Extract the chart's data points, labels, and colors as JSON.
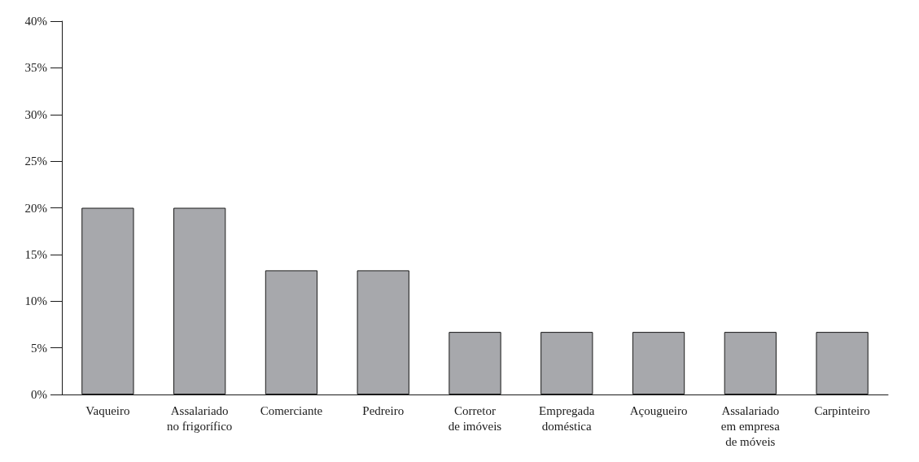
{
  "chart_data": {
    "type": "bar",
    "categories": [
      "Vaqueiro",
      "Assalariado\nno frigorífico",
      "Comerciante",
      "Pedreiro",
      "Corretor\nde imóveis",
      "Empregada\ndoméstica",
      "Açougueiro",
      "Assalariado\nem empresa\nde móveis",
      "Carpinteiro"
    ],
    "values": [
      20,
      20,
      13.3,
      13.3,
      6.7,
      6.7,
      6.7,
      6.7,
      6.7
    ],
    "color": "#a7a8ac",
    "ylim": [
      0,
      40
    ],
    "yticks": [
      {
        "value": 0,
        "label": "0%"
      },
      {
        "value": 5,
        "label": "5%"
      },
      {
        "value": 10,
        "label": "10%"
      },
      {
        "value": 15,
        "label": "15%"
      },
      {
        "value": 20,
        "label": "20%"
      },
      {
        "value": 25,
        "label": "25%"
      },
      {
        "value": 30,
        "label": "30%"
      },
      {
        "value": 35,
        "label": "35%"
      },
      {
        "value": 40,
        "label": "40%"
      }
    ],
    "grid": false
  }
}
